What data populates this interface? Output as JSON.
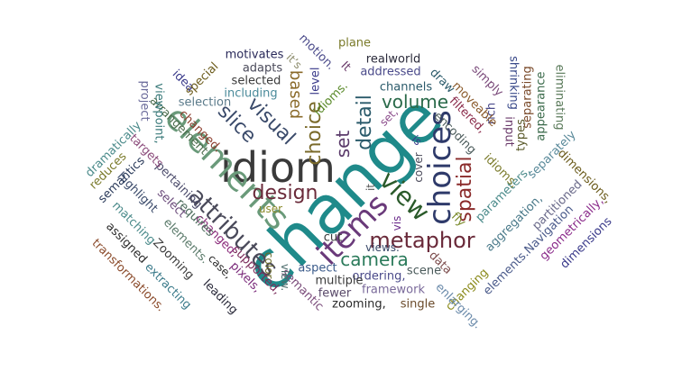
{
  "words": [
    {
      "text": "change",
      "color": "#1f8a8a"
    },
    {
      "text": "idiom",
      "color": "#3a3a3a"
    },
    {
      "text": "elements",
      "color": "#6a9a7a"
    },
    {
      "text": "choices",
      "color": "#2e3a6a"
    },
    {
      "text": "attributes",
      "color": "#4a4a5a"
    },
    {
      "text": "items",
      "color": "#6a3a7a"
    },
    {
      "text": "view",
      "color": "#2a5a2a"
    },
    {
      "text": "design",
      "color": "#6a2a3a"
    },
    {
      "text": "metaphor",
      "color": "#6a2a3a"
    },
    {
      "text": "spatial",
      "color": "#8a2a2a"
    },
    {
      "text": "choice",
      "color": "#7a6a2a"
    },
    {
      "text": "visual",
      "color": "#3a4a6a"
    },
    {
      "text": "slice",
      "color": "#3a4a6a"
    },
    {
      "text": "detail",
      "color": "#2a5a6a"
    },
    {
      "text": "volume",
      "color": "#2a6a4a"
    },
    {
      "text": "camera",
      "color": "#2a7a5a"
    },
    {
      "text": "based",
      "color": "#8a6a2a"
    },
    {
      "text": "set",
      "color": "#5a3a6a"
    },
    {
      "text": "changing",
      "color": "#8a8a1a"
    },
    {
      "text": "dimensions,",
      "color": "#6a5a1a"
    },
    {
      "text": "dimensions",
      "color": "#3a3a8a"
    },
    {
      "text": "geometrically,",
      "color": "#8a2a8a"
    },
    {
      "text": "elements.Navigation",
      "color": "#4a5a8a"
    },
    {
      "text": "partitioned",
      "color": "#6a6a8a"
    },
    {
      "text": "aggregation,",
      "color": "#4a7a8a"
    },
    {
      "text": "parameters,",
      "color": "#4a8a8a"
    },
    {
      "text": "idioms,",
      "color": "#7a7a2a"
    },
    {
      "text": "separately",
      "color": "#5a8a9a"
    },
    {
      "text": "eliminating",
      "color": "#5a7a5a"
    },
    {
      "text": "appearance",
      "color": "#3a6a4a"
    },
    {
      "text": "separating",
      "color": "#7a4a2a"
    },
    {
      "text": "shrinking",
      "color": "#3a4a8a"
    },
    {
      "text": "types",
      "color": "#5a5a2a"
    },
    {
      "text": "input",
      "color": "#6a3a6a"
    },
    {
      "text": "simply",
      "color": "#7a4a7a"
    },
    {
      "text": "rich",
      "color": "#4a4a8a"
    },
    {
      "text": "moveable",
      "color": "#8a5a2a"
    },
    {
      "text": "filtered,",
      "color": "#8a2a4a"
    },
    {
      "text": "encoding",
      "color": "#4a5a5a"
    },
    {
      "text": "draw",
      "color": "#2a5a6a"
    },
    {
      "text": "fly",
      "color": "#7a8a2a"
    },
    {
      "text": "enlarging.",
      "color": "#6a8aaa"
    },
    {
      "text": "data",
      "color": "#7a4a4a"
    },
    {
      "text": "scene",
      "color": "#4a5a5a"
    },
    {
      "text": "single",
      "color": "#6a4a2a"
    },
    {
      "text": "framework",
      "color": "#7a6a9a"
    },
    {
      "text": "ordering,",
      "color": "#4a4a8a"
    },
    {
      "text": "zooming,",
      "color": "#2a2a2a"
    },
    {
      "text": "fewer",
      "color": "#5a4a6a"
    },
    {
      "text": "multiple",
      "color": "#3a3a3a"
    },
    {
      "text": "aspect",
      "color": "#3a5a8a"
    },
    {
      "text": "views.",
      "color": "#3a4a6a"
    },
    {
      "text": "cut",
      "color": "#3a3a3a"
    },
    {
      "text": "semantic",
      "color": "#7a4a7a"
    },
    {
      "text": "view.",
      "color": "#4a6a6a"
    },
    {
      "text": "color.",
      "color": "#6a6a2a"
    },
    {
      "text": "user",
      "color": "#8a8a2a"
    },
    {
      "text": "supported,",
      "color": "#7a2a5a"
    },
    {
      "text": "pixels,",
      "color": "#7a2a7a"
    },
    {
      "text": "leading",
      "color": "#2a2a3a"
    },
    {
      "text": "case,",
      "color": "#2a2a2a"
    },
    {
      "text": "changed,",
      "color": "#8a2a7a"
    },
    {
      "text": "requires",
      "color": "#4a6a5a"
    },
    {
      "text": "select",
      "color": "#6a4a7a"
    },
    {
      "text": "pertaining",
      "color": "#4a4a6a"
    },
    {
      "text": "elements.",
      "color": "#5a7a6a"
    },
    {
      "text": "Zooming",
      "color": "#3a3a3a"
    },
    {
      "text": "extracting",
      "color": "#3a7a8a"
    },
    {
      "text": "transformations.",
      "color": "#8a4a2a"
    },
    {
      "text": "assigned",
      "color": "#2a2a2a"
    },
    {
      "text": "matching",
      "color": "#4a8a8a"
    },
    {
      "text": "highlight",
      "color": "#3a4a6a"
    },
    {
      "text": "semantics",
      "color": "#2a3a5a"
    },
    {
      "text": "reduces",
      "color": "#7a7a2a"
    },
    {
      "text": "dramatically",
      "color": "#4a8a8a"
    },
    {
      "text": "targets",
      "color": "#8a4a7a"
    },
    {
      "text": "changed.",
      "color": "#8a3a2a"
    },
    {
      "text": "arrangement",
      "color": "#4a6a4a"
    },
    {
      "text": "viewpoint,",
      "color": "#3a7a7a"
    },
    {
      "text": "project",
      "color": "#6a6a9a"
    },
    {
      "text": "idea",
      "color": "#3a3a8a"
    },
    {
      "text": "special",
      "color": "#6a5a1a"
    },
    {
      "text": "selection",
      "color": "#5a7a8a"
    },
    {
      "text": "including",
      "color": "#4a8a9a"
    },
    {
      "text": "selected",
      "color": "#3a3a3a"
    },
    {
      "text": "adapts",
      "color": "#4a4a5a"
    },
    {
      "text": "motivates",
      "color": "#2a2a5a"
    },
    {
      "text": "it’s",
      "color": "#8a8a6a"
    },
    {
      "text": "motion.",
      "color": "#4a4a8a"
    },
    {
      "text": "level",
      "color": "#3a3a8a"
    },
    {
      "text": "idioms.",
      "color": "#5a8a2a"
    },
    {
      "text": "It",
      "color": "#6a3a6a"
    },
    {
      "text": "plane",
      "color": "#7a7a2a"
    },
    {
      "text": "realworld",
      "color": "#2a2a3a"
    },
    {
      "text": "addressed",
      "color": "#4a4a8a"
    },
    {
      "text": "channels",
      "color": "#2a5a6a"
    },
    {
      "text": "it",
      "color": "#5a5a5a"
    },
    {
      "text": "is",
      "color": "#3a3a8a"
    },
    {
      "text": "cover",
      "color": "#4a4a5a"
    },
    {
      "text": "vis",
      "color": "#6a2a8a"
    },
    {
      "text": "set,",
      "color": "#8a4a8a"
    }
  ]
}
